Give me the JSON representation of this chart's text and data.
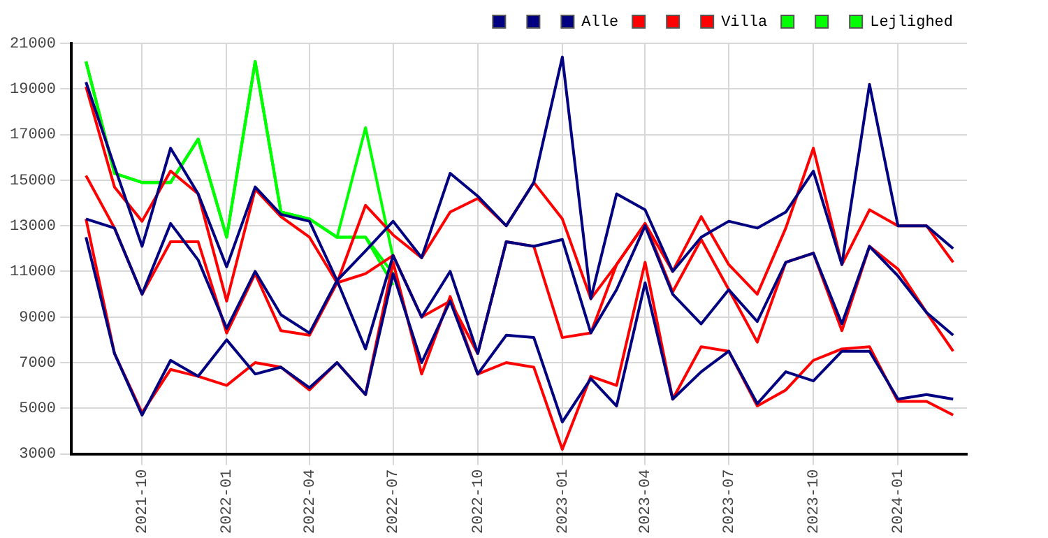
{
  "chart_data": {
    "type": "line",
    "x": [
      "2021-08",
      "2021-09",
      "2021-10",
      "2021-11",
      "2021-12",
      "2022-01",
      "2022-02",
      "2022-03",
      "2022-04",
      "2022-05",
      "2022-06",
      "2022-07",
      "2022-08",
      "2022-09",
      "2022-10",
      "2022-11",
      "2022-12",
      "2023-01",
      "2023-02",
      "2023-03",
      "2023-04",
      "2023-05",
      "2023-06",
      "2023-07",
      "2023-08",
      "2023-09",
      "2023-10",
      "2023-11",
      "2023-12",
      "2024-01",
      "2024-02",
      "2024-03"
    ],
    "series": [
      {
        "color": "#000080",
        "values": [
          19300,
          15600,
          12100,
          16400,
          14400,
          11200,
          14700,
          13500,
          13200,
          10600,
          11900,
          13200,
          11600,
          15300,
          14300,
          13000,
          14900,
          20400,
          9800,
          14400,
          13700,
          11000,
          12500,
          13200,
          12900,
          13600,
          15400,
          11300,
          19200,
          13000,
          13000,
          12000
        ]
      },
      {
        "color": "#000080",
        "values": [
          13300,
          12900,
          10000,
          13100,
          11500,
          8500,
          11000,
          9100,
          8300,
          10600,
          7600,
          11700,
          9000,
          11000,
          7400,
          12300,
          12100,
          12400,
          8300,
          10200,
          13000,
          10000,
          8700,
          10200,
          8800,
          11400,
          11800,
          8700,
          12100,
          10800,
          9200,
          8200
        ]
      },
      {
        "name": "Alle",
        "color": "#000080",
        "values": [
          12500,
          7400,
          4700,
          7100,
          6400,
          8000,
          6500,
          6800,
          5900,
          7000,
          5600,
          10900,
          7000,
          9700,
          6500,
          8200,
          8100,
          4400,
          6300,
          5100,
          10500,
          5400,
          6600,
          7500,
          5200,
          6600,
          6200,
          7500,
          7500,
          5400,
          5600,
          5400
        ]
      },
      {
        "color": "#ff0000",
        "values": [
          19100,
          14700,
          13200,
          15400,
          14400,
          9700,
          14600,
          13400,
          12500,
          10500,
          13900,
          12600,
          11600,
          13600,
          14200,
          13000,
          14900,
          13300,
          9800,
          11300,
          13100,
          11000,
          13400,
          11300,
          10000,
          12900,
          16400,
          11300,
          13700,
          13000,
          13000,
          11400
        ]
      },
      {
        "color": "#ff0000",
        "values": [
          15200,
          12900,
          10000,
          12300,
          12300,
          8300,
          10900,
          8400,
          8200,
          10500,
          10900,
          11700,
          9000,
          9700,
          7400,
          12300,
          12100,
          8100,
          8300,
          11300,
          13100,
          10100,
          12400,
          10200,
          7900,
          11400,
          11800,
          8400,
          12100,
          11100,
          9200,
          7500
        ]
      },
      {
        "name": "Villa",
        "color": "#ff0000",
        "values": [
          13300,
          7400,
          4800,
          6700,
          6400,
          6000,
          7000,
          6800,
          5800,
          7000,
          5600,
          11400,
          6500,
          9900,
          6500,
          7000,
          6800,
          3200,
          6400,
          6000,
          11400,
          5400,
          7700,
          7500,
          5100,
          5800,
          7100,
          7600,
          7700,
          5300,
          5300,
          4700
        ]
      },
      {
        "color": "#00ff00",
        "values": [
          20200,
          15300,
          14900,
          14900,
          16800,
          12500,
          20200,
          13600,
          13300,
          12500,
          17300,
          11600,
          null,
          null,
          null,
          null,
          null,
          null,
          null,
          null,
          null,
          null,
          null,
          null,
          null,
          null,
          null,
          null,
          null,
          null,
          null,
          null
        ]
      },
      {
        "color": "#00ff00",
        "values": [
          20200,
          15300,
          14900,
          14900,
          16800,
          12500,
          20200,
          13600,
          13300,
          12500,
          12500,
          10900,
          null,
          null,
          null,
          null,
          null,
          null,
          null,
          null,
          null,
          null,
          null,
          null,
          null,
          null,
          null,
          null,
          null,
          null,
          null,
          null
        ]
      },
      {
        "name": "Lejlighed",
        "color": "#00ff00",
        "values": [
          20200,
          15300,
          14900,
          14900,
          16800,
          12500,
          20200,
          13600,
          13300,
          12500,
          12500,
          10400,
          null,
          null,
          null,
          null,
          null,
          null,
          null,
          null,
          null,
          null,
          null,
          null,
          null,
          null,
          null,
          null,
          null,
          null,
          null,
          null
        ]
      }
    ],
    "xlim": [
      "2021-07-16",
      "2024-03-16"
    ],
    "xticks": [
      "2021-10",
      "2022-01",
      "2022-04",
      "2022-07",
      "2022-10",
      "2023-01",
      "2023-04",
      "2023-07",
      "2023-10",
      "2024-01"
    ],
    "ylim": [
      3000,
      21000
    ],
    "yticks": [
      3000,
      5000,
      7000,
      9000,
      11000,
      13000,
      15000,
      17000,
      19000,
      21000
    ],
    "grid": true,
    "legend": "top right",
    "marker": "none",
    "line_style": "solid"
  }
}
